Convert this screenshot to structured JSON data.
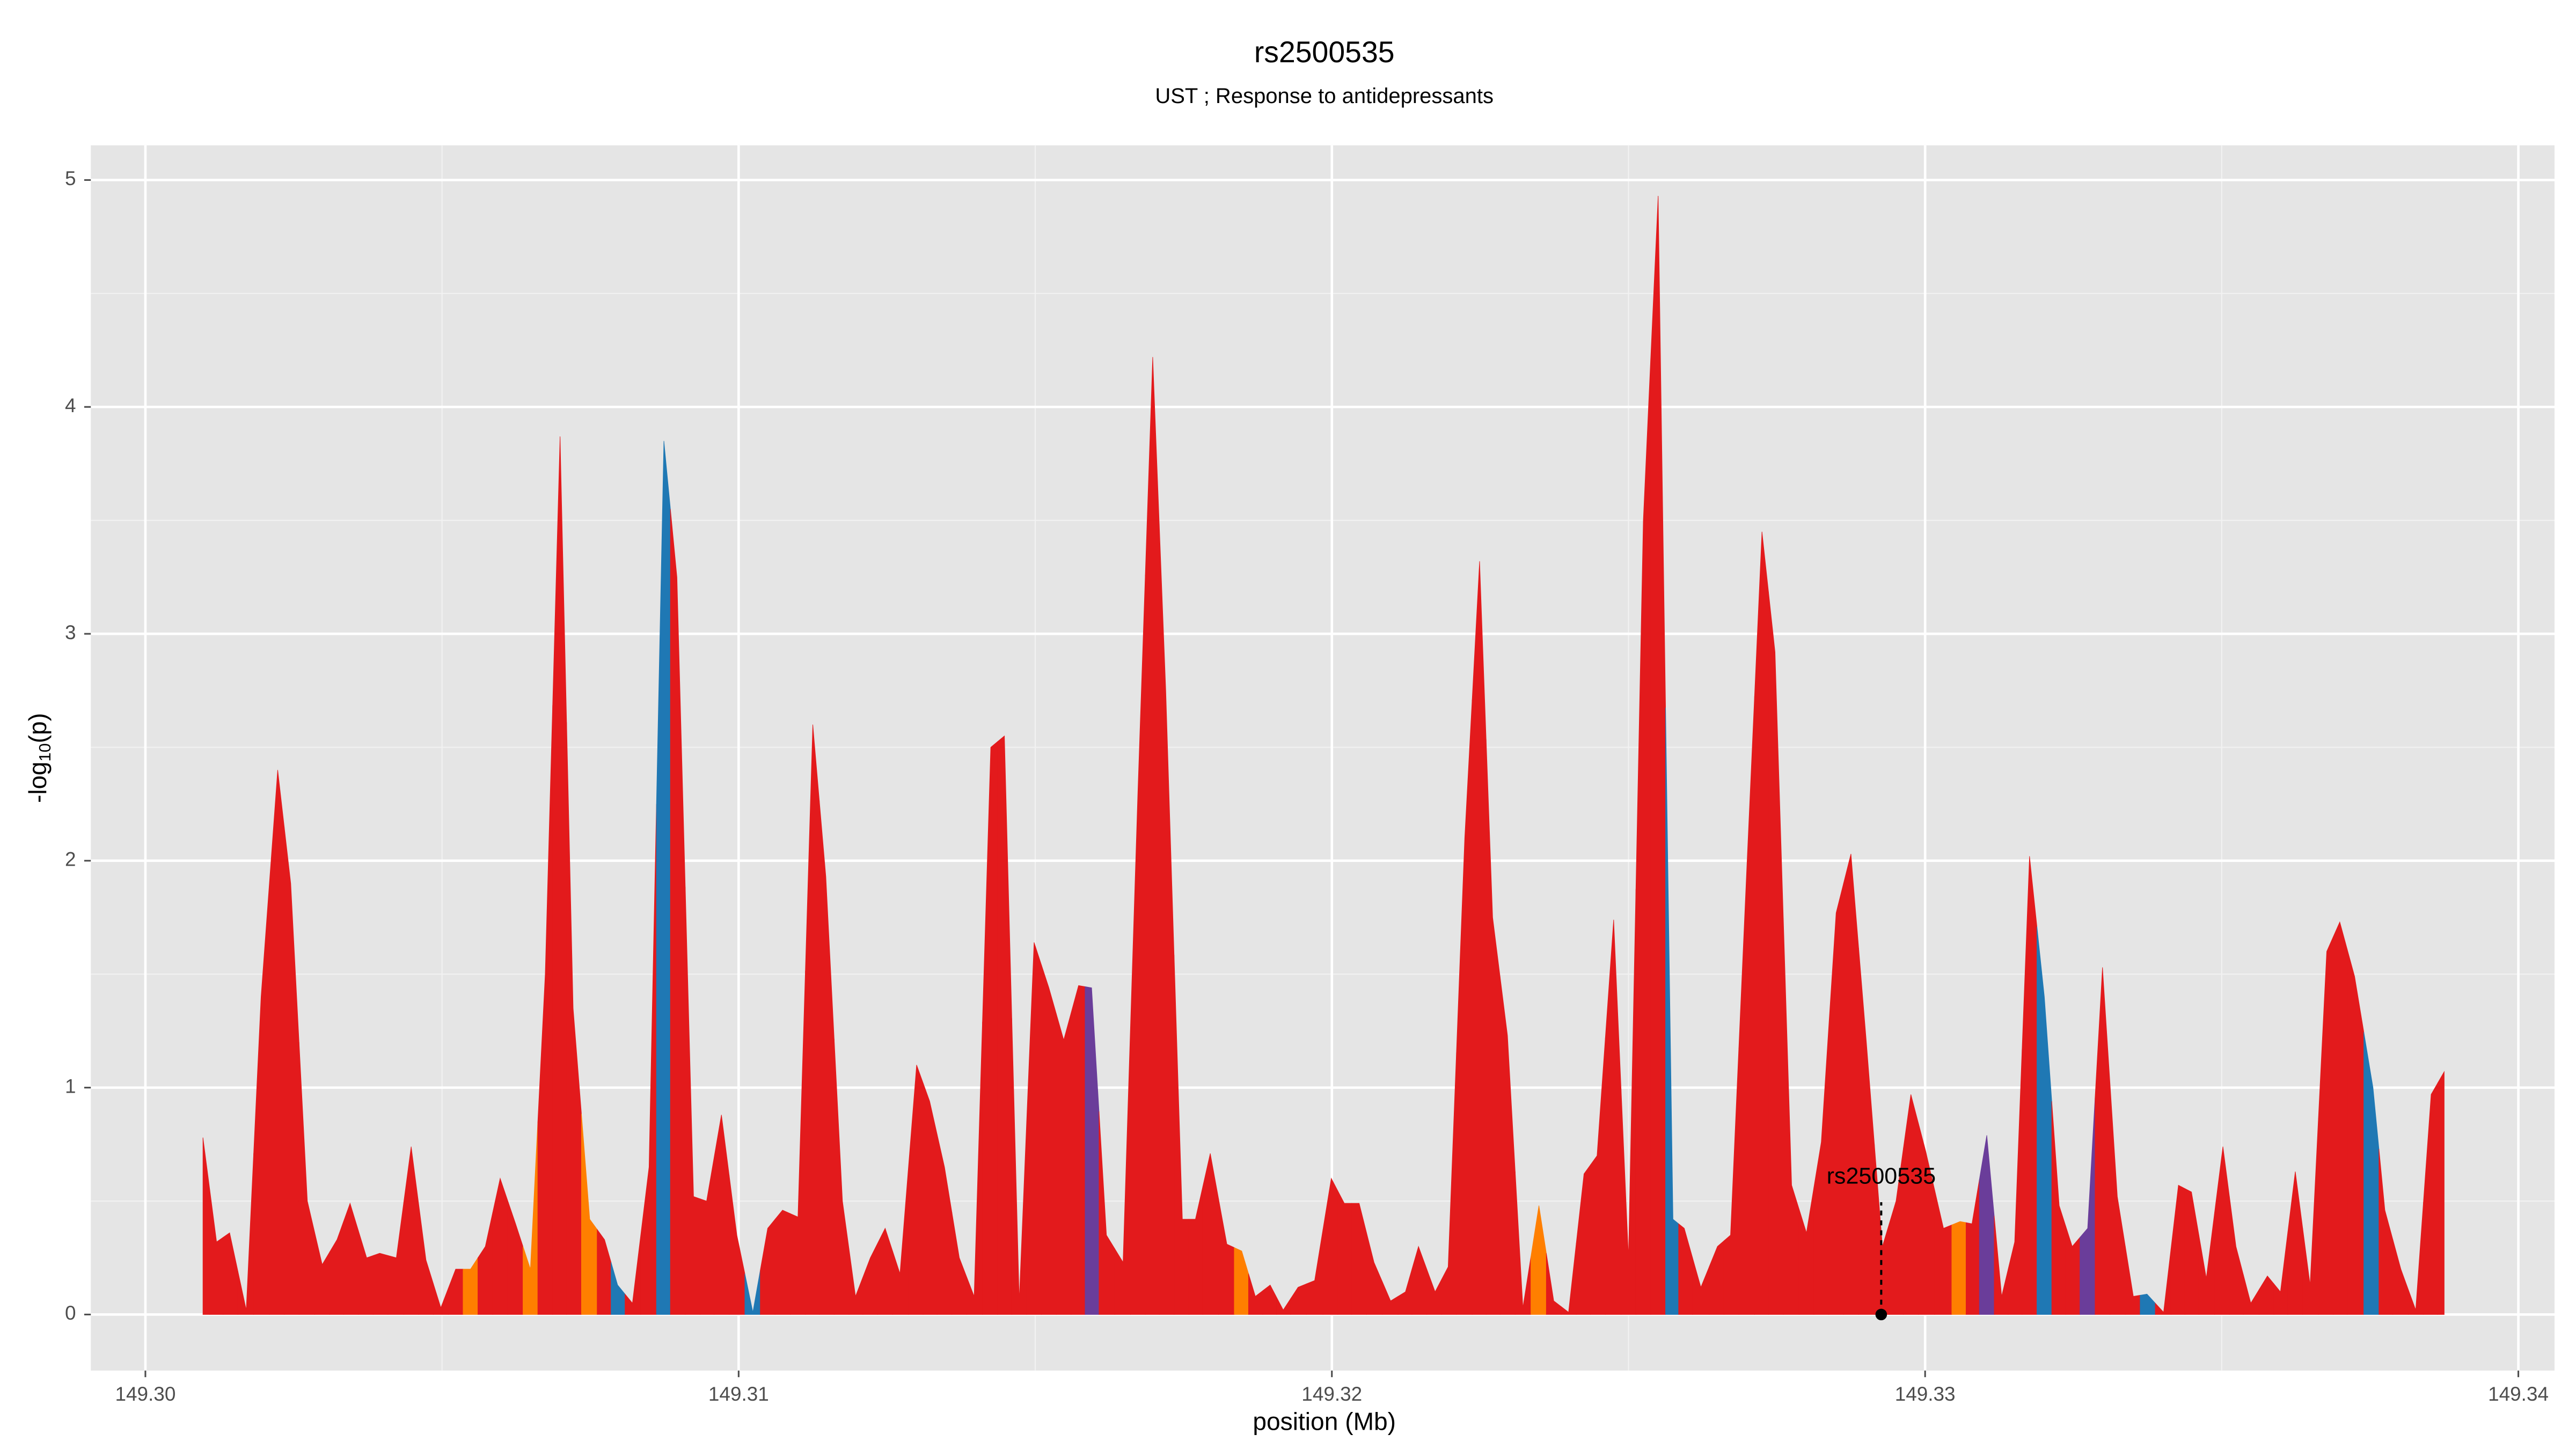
{
  "chart_data": {
    "type": "area",
    "title": "rs2500535",
    "subtitle": "UST ; Response to antidepressants",
    "xlabel": "position (Mb)",
    "ylabel": {
      "base": "-log",
      "subscript": "10",
      "suffix": "(p)"
    },
    "x": [
      149.30097,
      149.3012,
      149.30142,
      149.3017,
      149.30195,
      149.30223,
      149.30245,
      149.30273,
      149.30298,
      149.30323,
      149.30345,
      149.30373,
      149.30395,
      149.30423,
      149.30448,
      149.30473,
      149.30498,
      149.30523,
      149.30548,
      149.30573,
      149.30598,
      149.30624,
      149.30649,
      149.30674,
      149.30699,
      149.30721,
      149.30749,
      149.30774,
      149.30796,
      149.30821,
      149.30849,
      149.30874,
      149.30896,
      149.30924,
      149.30946,
      149.30971,
      149.30997,
      149.31024,
      149.31049,
      149.31074,
      149.311,
      149.31125,
      149.31147,
      149.31175,
      149.31197,
      149.31222,
      149.31247,
      149.31272,
      149.313,
      149.31322,
      149.31347,
      149.31372,
      149.31397,
      149.31425,
      149.31448,
      149.31473,
      149.31498,
      149.31523,
      149.31548,
      149.31573,
      149.31595,
      149.3162,
      149.31648,
      149.31673,
      149.31698,
      149.3172,
      149.31748,
      149.3177,
      149.31795,
      149.31823,
      149.31848,
      149.31871,
      149.31896,
      149.31918,
      149.31943,
      149.31971,
      149.31999,
      149.32021,
      149.32046,
      149.32071,
      149.32099,
      149.32124,
      149.32146,
      149.32174,
      149.32196,
      149.32224,
      149.32249,
      149.32271,
      149.32296,
      149.32322,
      149.32349,
      149.32374,
      149.32399,
      149.32425,
      149.32447,
      149.32475,
      149.325,
      149.32525,
      149.3255,
      149.32575,
      149.32594,
      149.32622,
      149.3265,
      149.32672,
      149.327,
      149.32725,
      149.32747,
      149.32775,
      149.328,
      149.32825,
      149.3285,
      149.32875,
      149.32901,
      149.32928,
      149.32951,
      149.32976,
      149.33001,
      149.33031,
      149.33059,
      149.33079,
      149.33104,
      149.33129,
      149.33151,
      149.33176,
      149.33201,
      149.33226,
      149.33248,
      149.33274,
      149.33299,
      149.33324,
      149.33351,
      149.33374,
      149.33402,
      149.33427,
      149.33449,
      149.33474,
      149.33502,
      149.33524,
      149.33549,
      149.33577,
      149.33599,
      149.33624,
      149.33649,
      149.33677,
      149.33699,
      149.33724,
      149.33755,
      149.33775,
      149.33802,
      149.33827,
      149.33853,
      149.33875
    ],
    "values": [
      0.78,
      0.32,
      0.36,
      0.02,
      1.4,
      2.4,
      1.9,
      0.5,
      0.22,
      0.33,
      0.49,
      0.25,
      0.27,
      0.25,
      0.74,
      0.24,
      0.03,
      0.2,
      0.2,
      0.3,
      0.6,
      0.4,
      0.2,
      1.5,
      3.87,
      1.35,
      0.42,
      0.33,
      0.13,
      0.05,
      0.65,
      3.85,
      3.25,
      0.52,
      0.5,
      0.88,
      0.35,
      0.01,
      0.38,
      0.46,
      0.43,
      2.6,
      1.93,
      0.5,
      0.08,
      0.25,
      0.38,
      0.18,
      1.1,
      0.94,
      0.65,
      0.25,
      0.08,
      2.5,
      2.55,
      0.06,
      1.64,
      1.44,
      1.21,
      1.45,
      1.44,
      0.35,
      0.23,
      2.3,
      4.22,
      2.75,
      0.42,
      0.42,
      0.71,
      0.31,
      0.28,
      0.08,
      0.13,
      0.02,
      0.12,
      0.15,
      0.6,
      0.49,
      0.49,
      0.23,
      0.06,
      0.1,
      0.3,
      0.1,
      0.21,
      2.1,
      3.32,
      1.75,
      1.23,
      0.03,
      0.48,
      0.06,
      0.01,
      0.62,
      0.7,
      1.74,
      0.25,
      3.5,
      4.93,
      0.42,
      0.38,
      0.12,
      0.3,
      0.35,
      2.0,
      3.45,
      2.92,
      0.57,
      0.36,
      0.76,
      1.77,
      2.03,
      1.2,
      0.3,
      0.5,
      0.97,
      0.72,
      0.38,
      0.41,
      0.4,
      0.79,
      0.08,
      0.32,
      2.02,
      1.4,
      0.48,
      0.3,
      0.38,
      1.53,
      0.52,
      0.08,
      0.09,
      0.01,
      0.57,
      0.54,
      0.16,
      0.74,
      0.3,
      0.05,
      0.17,
      0.1,
      0.63,
      0.13,
      1.6,
      1.73,
      1.49,
      1.0,
      0.46,
      0.2,
      0.02,
      0.97,
      1.07
    ],
    "colors": [
      "#e31a1c",
      "#e31a1c",
      "#e31a1c",
      "#e31a1c",
      "#e31a1c",
      "#e31a1c",
      "#e31a1c",
      "#e31a1c",
      "#e31a1c",
      "#e31a1c",
      "#e31a1c",
      "#e31a1c",
      "#e31a1c",
      "#e31a1c",
      "#e31a1c",
      "#e31a1c",
      "#e31a1c",
      "#e31a1c",
      "#ff7f00",
      "#e31a1c",
      "#e31a1c",
      "#e31a1c",
      "#ff7f00",
      "#e31a1c",
      "#e31a1c",
      "#e31a1c",
      "#ff7f00",
      "#e31a1c",
      "#1f78b4",
      "#e31a1c",
      "#e31a1c",
      "#1f78b4",
      "#e31a1c",
      "#e31a1c",
      "#e31a1c",
      "#e31a1c",
      "#e31a1c",
      "#1f78b4",
      "#e31a1c",
      "#e31a1c",
      "#e31a1c",
      "#e31a1c",
      "#e31a1c",
      "#e31a1c",
      "#e31a1c",
      "#e31a1c",
      "#e31a1c",
      "#e31a1c",
      "#e31a1c",
      "#e31a1c",
      "#e31a1c",
      "#e31a1c",
      "#e31a1c",
      "#e31a1c",
      "#e31a1c",
      "#e31a1c",
      "#e31a1c",
      "#e31a1c",
      "#e31a1c",
      "#e31a1c",
      "#6a3d9a",
      "#e31a1c",
      "#e31a1c",
      "#e31a1c",
      "#e31a1c",
      "#e31a1c",
      "#e31a1c",
      "#e31a1c",
      "#e31a1c",
      "#e31a1c",
      "#ff7f00",
      "#e31a1c",
      "#e31a1c",
      "#e31a1c",
      "#e31a1c",
      "#e31a1c",
      "#e31a1c",
      "#e31a1c",
      "#e31a1c",
      "#e31a1c",
      "#e31a1c",
      "#e31a1c",
      "#e31a1c",
      "#e31a1c",
      "#e31a1c",
      "#e31a1c",
      "#e31a1c",
      "#e31a1c",
      "#e31a1c",
      "#e31a1c",
      "#ff7f00",
      "#e31a1c",
      "#e31a1c",
      "#e31a1c",
      "#e31a1c",
      "#e31a1c",
      "#e31a1c",
      "#e31a1c",
      "#e31a1c",
      "#1f78b4",
      "#e31a1c",
      "#e31a1c",
      "#e31a1c",
      "#e31a1c",
      "#e31a1c",
      "#e31a1c",
      "#e31a1c",
      "#e31a1c",
      "#e31a1c",
      "#e31a1c",
      "#e31a1c",
      "#e31a1c",
      "#e31a1c",
      "#e31a1c",
      "#e31a1c",
      "#e31a1c",
      "#e31a1c",
      "#e31a1c",
      "#ff7f00",
      "#e31a1c",
      "#6a3d9a",
      "#e31a1c",
      "#e31a1c",
      "#e31a1c",
      "#1f78b4",
      "#e31a1c",
      "#e31a1c",
      "#6a3d9a",
      "#e31a1c",
      "#e31a1c",
      "#e31a1c",
      "#1f78b4",
      "#e31a1c",
      "#e31a1c",
      "#e31a1c",
      "#e31a1c",
      "#e31a1c",
      "#e31a1c",
      "#e31a1c",
      "#e31a1c",
      "#e31a1c",
      "#e31a1c",
      "#e31a1c",
      "#e31a1c",
      "#e31a1c",
      "#e31a1c",
      "#1f78b4",
      "#e31a1c",
      "#e31a1c",
      "#e31a1c",
      "#e31a1c",
      "#e31a1c"
    ],
    "annotation": {
      "text": "rs2500535",
      "x": 149.32926,
      "y": 0
    },
    "xlim": [
      149.29908,
      149.34061
    ],
    "ylim": [
      -0.247,
      5.153
    ],
    "xticks": [
      {
        "value": 149.3,
        "label": "149.30"
      },
      149.31,
      149.32,
      149.33,
      149.34
    ],
    "yticks": [
      0,
      1,
      2,
      3,
      4,
      5
    ],
    "grid": true,
    "background": "#e5e5e5"
  }
}
